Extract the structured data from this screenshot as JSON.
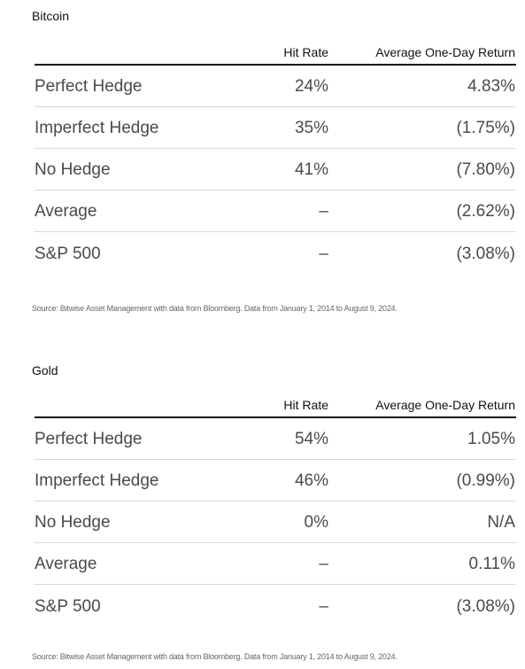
{
  "tables": [
    {
      "title": "Bitcoin",
      "columns": [
        "Hit Rate",
        "Average One-Day Return"
      ],
      "rows": [
        {
          "label": "Perfect Hedge",
          "hit_rate": "24%",
          "return": "4.83%"
        },
        {
          "label": "Imperfect Hedge",
          "hit_rate": "35%",
          "return": "(1.75%)"
        },
        {
          "label": "No Hedge",
          "hit_rate": "41%",
          "return": "(7.80%)"
        },
        {
          "label": "Average",
          "hit_rate": "–",
          "return": "(2.62%)"
        },
        {
          "label": "S&P 500",
          "hit_rate": "–",
          "return": "(3.08%)"
        }
      ],
      "source": "Source: Bitwise Asset Management with data from Bloomberg. Data from January 1, 2014 to August 9, 2024."
    },
    {
      "title": "Gold",
      "columns": [
        "Hit Rate",
        "Average One-Day Return"
      ],
      "rows": [
        {
          "label": "Perfect Hedge",
          "hit_rate": "54%",
          "return": "1.05%"
        },
        {
          "label": "Imperfect Hedge",
          "hit_rate": "46%",
          "return": "(0.99%)"
        },
        {
          "label": "No Hedge",
          "hit_rate": "0%",
          "return": "N/A"
        },
        {
          "label": "Average",
          "hit_rate": "–",
          "return": "0.11%"
        },
        {
          "label": "S&P 500",
          "hit_rate": "–",
          "return": "(3.08%)"
        }
      ],
      "source": "Source: Bitwise Asset Management with data from Bloomberg. Data from January 1, 2014 to August 9, 2024."
    }
  ]
}
